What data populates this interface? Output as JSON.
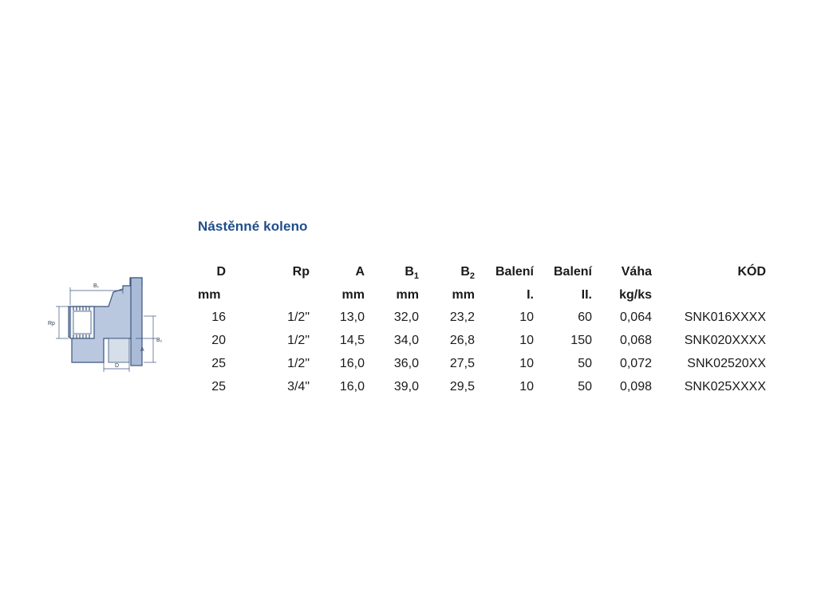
{
  "title": "Nástěnné koleno",
  "drawing": {
    "label_b1": "B₁",
    "label_rp": "Rp",
    "label_b2": "B₂",
    "label_a": "A",
    "label_d": "D"
  },
  "table": {
    "headers_row1": {
      "d": "D",
      "rp": "Rp",
      "a": "A",
      "b1_base": "B",
      "b1_sub": "1",
      "b2_base": "B",
      "b2_sub": "2",
      "baleni1": "Balení",
      "baleni2": "Balení",
      "vaha": "Váha",
      "kod": "KÓD"
    },
    "headers_row2": {
      "d": "mm",
      "a": "mm",
      "b1": "mm",
      "b2": "mm",
      "baleni1": "I.",
      "baleni2": "II.",
      "vaha": "kg/ks"
    },
    "rows": [
      {
        "d": "16",
        "rp": "1/2\"",
        "a": "13,0",
        "b1": "32,0",
        "b2": "23,2",
        "baleni1": "10",
        "baleni2": "60",
        "vaha": "0,064",
        "kod": "SNK016XXXX"
      },
      {
        "d": "20",
        "rp": "1/2\"",
        "a": "14,5",
        "b1": "34,0",
        "b2": "26,8",
        "baleni1": "10",
        "baleni2": "150",
        "vaha": "0,068",
        "kod": "SNK020XXXX"
      },
      {
        "d": "25",
        "rp": "1/2\"",
        "a": "16,0",
        "b1": "36,0",
        "b2": "27,5",
        "baleni1": "10",
        "baleni2": "50",
        "vaha": "0,072",
        "kod": "SNK02520XX"
      },
      {
        "d": "25",
        "rp": "3/4\"",
        "a": "16,0",
        "b1": "39,0",
        "b2": "29,5",
        "baleni1": "10",
        "baleni2": "50",
        "vaha": "0,098",
        "kod": "SNK025XXXX"
      }
    ]
  }
}
